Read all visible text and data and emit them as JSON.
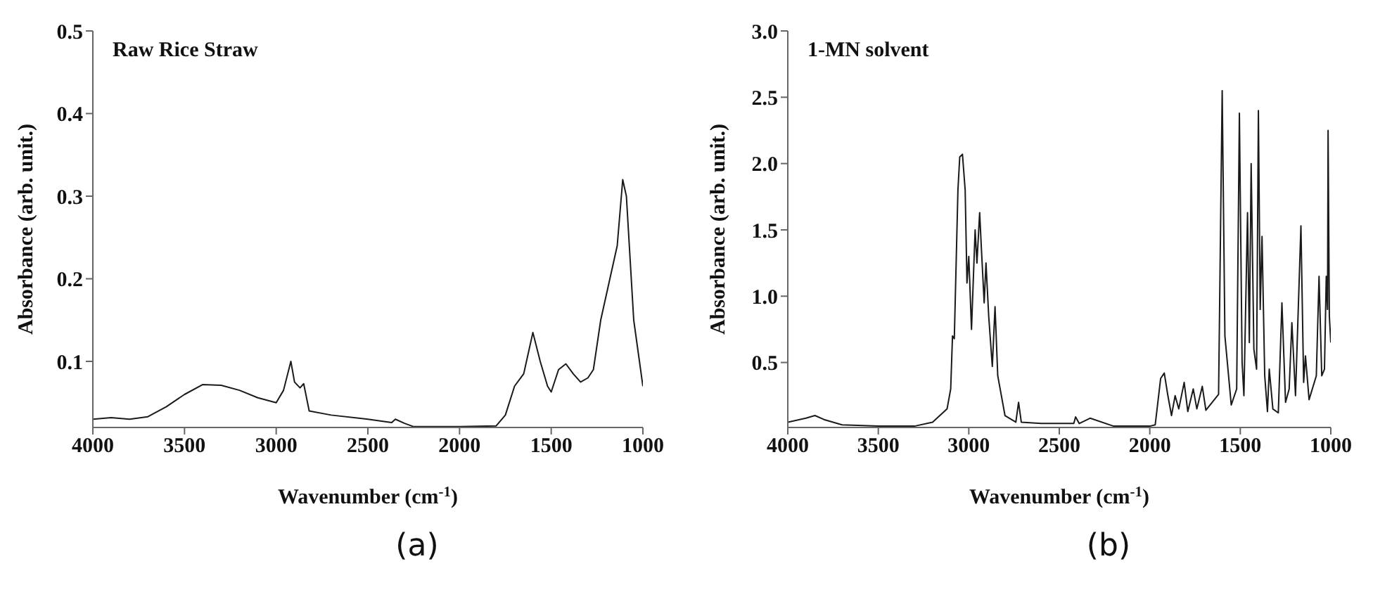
{
  "chart_data": [
    {
      "type": "line",
      "title": "Raw Rice Straw",
      "xlabel": "Wavenumber (cm$^{-1}$)",
      "ylabel": "Absorbance (arb. unit.)",
      "annotations": [
        "(a)"
      ],
      "xlim": [
        4000,
        1000
      ],
      "xticks": [
        4000,
        3500,
        3000,
        2500,
        2000,
        1500,
        1000
      ],
      "ylim": [
        0.02,
        0.5
      ],
      "yticks": [
        0.1,
        0.2,
        0.3,
        0.4,
        0.5
      ],
      "marker": "none",
      "series": [
        {
          "color": "#1a1a1a",
          "x": [
            4000,
            3900,
            3800,
            3700,
            3600,
            3500,
            3400,
            3300,
            3200,
            3100,
            3000,
            2960,
            2920,
            2900,
            2870,
            2850,
            2820,
            2700,
            2500,
            2370,
            2350,
            2300,
            2250,
            2000,
            1800,
            1750,
            1700,
            1650,
            1600,
            1560,
            1520,
            1500,
            1460,
            1420,
            1380,
            1340,
            1300,
            1270,
            1230,
            1180,
            1140,
            1110,
            1090,
            1050,
            1000
          ],
          "values": [
            0.03,
            0.032,
            0.03,
            0.033,
            0.045,
            0.06,
            0.072,
            0.071,
            0.065,
            0.056,
            0.05,
            0.065,
            0.1,
            0.075,
            0.068,
            0.073,
            0.04,
            0.035,
            0.03,
            0.026,
            0.03,
            0.025,
            0.021,
            0.021,
            0.022,
            0.035,
            0.07,
            0.085,
            0.135,
            0.1,
            0.07,
            0.063,
            0.09,
            0.097,
            0.085,
            0.075,
            0.08,
            0.09,
            0.15,
            0.2,
            0.24,
            0.32,
            0.3,
            0.15,
            0.07
          ]
        }
      ]
    },
    {
      "type": "line",
      "title": "1-MN solvent",
      "xlabel": "Wavenumber (cm$^{-1}$)",
      "ylabel": "Absorbance (arb. unit.)",
      "annotations": [
        "(b)"
      ],
      "xlim": [
        4000,
        1000
      ],
      "xticks": [
        4000,
        3500,
        3000,
        2500,
        2000,
        1500,
        1000
      ],
      "ylim": [
        0.01,
        3.0
      ],
      "yticks": [
        0.5,
        {
          "value": 1,
          "label": "1.0"
        },
        1.5,
        {
          "value": 2,
          "label": "2.0"
        },
        2.5,
        {
          "value": 3,
          "label": "3.0"
        }
      ],
      "marker": "none",
      "series": [
        {
          "color": "#1a1a1a",
          "x": [
            4000,
            3900,
            3850,
            3800,
            3700,
            3500,
            3300,
            3200,
            3120,
            3100,
            3090,
            3080,
            3060,
            3050,
            3035,
            3020,
            3010,
            3000,
            2985,
            2965,
            2955,
            2940,
            2930,
            2915,
            2905,
            2890,
            2870,
            2855,
            2840,
            2800,
            2740,
            2725,
            2710,
            2600,
            2420,
            2410,
            2390,
            2330,
            2200,
            2000,
            1970,
            1940,
            1920,
            1900,
            1880,
            1860,
            1840,
            1810,
            1790,
            1760,
            1740,
            1710,
            1690,
            1620,
            1600,
            1585,
            1550,
            1520,
            1505,
            1490,
            1480,
            1460,
            1450,
            1440,
            1425,
            1410,
            1400,
            1390,
            1380,
            1365,
            1350,
            1340,
            1320,
            1290,
            1270,
            1250,
            1230,
            1215,
            1195,
            1165,
            1150,
            1140,
            1120,
            1080,
            1065,
            1050,
            1035,
            1025,
            1018,
            1015,
            1008,
            1000
          ],
          "values": [
            0.05,
            0.08,
            0.1,
            0.07,
            0.03,
            0.02,
            0.02,
            0.05,
            0.15,
            0.3,
            0.7,
            0.68,
            1.8,
            2.05,
            2.07,
            1.8,
            1.1,
            1.3,
            0.75,
            1.5,
            1.25,
            1.63,
            1.35,
            0.95,
            1.25,
            0.85,
            0.47,
            0.92,
            0.4,
            0.1,
            0.05,
            0.2,
            0.05,
            0.04,
            0.04,
            0.09,
            0.04,
            0.08,
            0.02,
            0.02,
            0.03,
            0.38,
            0.42,
            0.25,
            0.1,
            0.25,
            0.15,
            0.35,
            0.13,
            0.3,
            0.15,
            0.32,
            0.14,
            0.26,
            2.55,
            0.7,
            0.18,
            0.3,
            2.38,
            0.5,
            0.25,
            1.63,
            0.65,
            2.0,
            0.6,
            0.45,
            2.4,
            0.9,
            1.45,
            0.4,
            0.13,
            0.45,
            0.15,
            0.12,
            0.95,
            0.2,
            0.3,
            0.8,
            0.25,
            1.53,
            0.35,
            0.55,
            0.22,
            0.4,
            1.15,
            0.4,
            0.45,
            1.15,
            0.9,
            2.25,
            0.85,
            0.65
          ]
        }
      ]
    }
  ]
}
